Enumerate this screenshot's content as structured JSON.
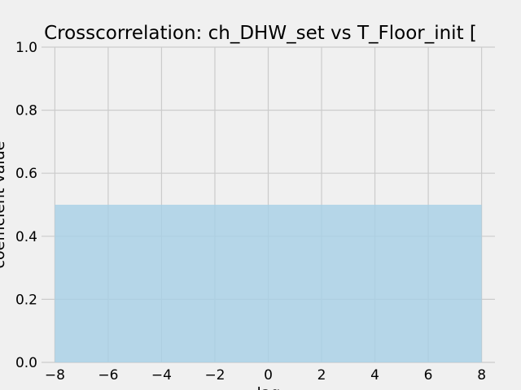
{
  "chart_data": {
    "type": "area",
    "title": "Crosscorrelation: ch_DHW_set vs T_Floor_init [",
    "xlabel": "lag",
    "ylabel": "coefficient value",
    "xlim": [
      -8.5,
      8.5
    ],
    "ylim": [
      0,
      1
    ],
    "xticks": [
      -8,
      -6,
      -4,
      -2,
      0,
      2,
      4,
      6,
      8
    ],
    "xtick_labels": [
      "−8",
      "−6",
      "−4",
      "−2",
      "0",
      "2",
      "4",
      "6",
      "8"
    ],
    "yticks": [
      0,
      0.2,
      0.4,
      0.6,
      0.8,
      1.0
    ],
    "ytick_labels": [
      "0.0",
      "0.2",
      "0.4",
      "0.6",
      "0.8",
      "1.0"
    ],
    "grid": true,
    "series": [
      {
        "x": [
          -8,
          -7,
          -6,
          -5,
          -4,
          -3,
          -2,
          -1,
          0,
          1,
          2,
          3,
          4,
          5,
          6,
          7,
          8
        ],
        "values": [
          0.5,
          0.5,
          0.5,
          0.5,
          0.5,
          0.5,
          0.5,
          0.5,
          0.5,
          0.5,
          0.5,
          0.5,
          0.5,
          0.5,
          0.5,
          0.5,
          0.5
        ],
        "color": "#a6cfe6"
      }
    ],
    "colors": {
      "background": "#f0f0f0",
      "grid": "#cbcbcb",
      "fill": "#a6cfe6",
      "fill_opacity": 0.8
    }
  }
}
